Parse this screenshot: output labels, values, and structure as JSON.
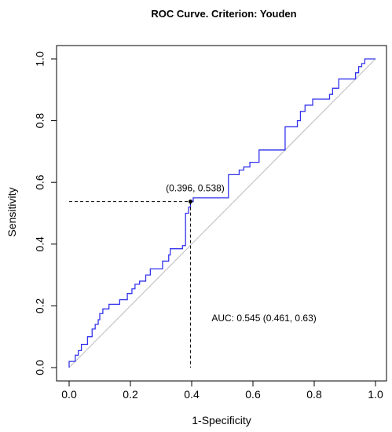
{
  "chart_data": {
    "type": "line",
    "title": "ROC Curve. Criterion: Youden",
    "xlabel": "1-Specificity",
    "ylabel": "Sensitivity",
    "xlim": [
      0,
      1
    ],
    "ylim": [
      0,
      1
    ],
    "x_ticks": [
      "0.0",
      "0.2",
      "0.4",
      "0.6",
      "0.8",
      "1.0"
    ],
    "y_ticks": [
      "0.0",
      "0.2",
      "0.4",
      "0.6",
      "0.8",
      "1.0"
    ],
    "grid": false,
    "legend": "none",
    "colors": {
      "curve": "#3333ee",
      "reference": "#bbbbbb",
      "guide": "#000000",
      "point": "#000000"
    },
    "series": [
      {
        "values": [
          [
            0.0,
            0.0
          ],
          [
            0.0,
            0.02
          ],
          [
            0.02,
            0.02
          ],
          [
            0.02,
            0.04
          ],
          [
            0.03,
            0.04
          ],
          [
            0.03,
            0.055
          ],
          [
            0.04,
            0.055
          ],
          [
            0.04,
            0.075
          ],
          [
            0.06,
            0.075
          ],
          [
            0.06,
            0.1
          ],
          [
            0.075,
            0.1
          ],
          [
            0.075,
            0.125
          ],
          [
            0.085,
            0.125
          ],
          [
            0.085,
            0.14
          ],
          [
            0.095,
            0.14
          ],
          [
            0.095,
            0.155
          ],
          [
            0.1,
            0.155
          ],
          [
            0.1,
            0.175
          ],
          [
            0.11,
            0.175
          ],
          [
            0.11,
            0.19
          ],
          [
            0.13,
            0.19
          ],
          [
            0.13,
            0.205
          ],
          [
            0.165,
            0.205
          ],
          [
            0.165,
            0.22
          ],
          [
            0.19,
            0.22
          ],
          [
            0.19,
            0.24
          ],
          [
            0.205,
            0.24
          ],
          [
            0.205,
            0.255
          ],
          [
            0.215,
            0.255
          ],
          [
            0.215,
            0.27
          ],
          [
            0.23,
            0.27
          ],
          [
            0.23,
            0.28
          ],
          [
            0.25,
            0.28
          ],
          [
            0.25,
            0.3
          ],
          [
            0.265,
            0.3
          ],
          [
            0.265,
            0.32
          ],
          [
            0.305,
            0.32
          ],
          [
            0.305,
            0.345
          ],
          [
            0.325,
            0.345
          ],
          [
            0.325,
            0.365
          ],
          [
            0.33,
            0.365
          ],
          [
            0.33,
            0.385
          ],
          [
            0.37,
            0.385
          ],
          [
            0.37,
            0.395
          ],
          [
            0.38,
            0.395
          ],
          [
            0.38,
            0.5
          ],
          [
            0.39,
            0.5
          ],
          [
            0.39,
            0.52
          ],
          [
            0.396,
            0.52
          ],
          [
            0.396,
            0.538
          ],
          [
            0.405,
            0.538
          ],
          [
            0.405,
            0.55
          ],
          [
            0.52,
            0.55
          ],
          [
            0.52,
            0.625
          ],
          [
            0.555,
            0.625
          ],
          [
            0.555,
            0.64
          ],
          [
            0.57,
            0.64
          ],
          [
            0.57,
            0.65
          ],
          [
            0.59,
            0.65
          ],
          [
            0.59,
            0.665
          ],
          [
            0.62,
            0.665
          ],
          [
            0.62,
            0.705
          ],
          [
            0.705,
            0.705
          ],
          [
            0.705,
            0.78
          ],
          [
            0.745,
            0.78
          ],
          [
            0.745,
            0.8
          ],
          [
            0.755,
            0.8
          ],
          [
            0.755,
            0.83
          ],
          [
            0.77,
            0.83
          ],
          [
            0.77,
            0.85
          ],
          [
            0.795,
            0.85
          ],
          [
            0.795,
            0.87
          ],
          [
            0.85,
            0.87
          ],
          [
            0.85,
            0.885
          ],
          [
            0.86,
            0.885
          ],
          [
            0.86,
            0.905
          ],
          [
            0.88,
            0.905
          ],
          [
            0.88,
            0.935
          ],
          [
            0.935,
            0.935
          ],
          [
            0.935,
            0.955
          ],
          [
            0.945,
            0.955
          ],
          [
            0.945,
            0.975
          ],
          [
            0.955,
            0.975
          ],
          [
            0.955,
            0.985
          ],
          [
            0.965,
            0.985
          ],
          [
            0.965,
            1.0
          ],
          [
            1.0,
            1.0
          ]
        ]
      }
    ],
    "reference_line": [
      [
        0,
        0
      ],
      [
        1,
        1
      ]
    ],
    "optimal_point": {
      "x": 0.396,
      "y": 0.538
    },
    "annotations": {
      "point_label": "(0.396, 0.538)",
      "auc_label": "AUC: 0.545 (0.461, 0.63)"
    }
  }
}
